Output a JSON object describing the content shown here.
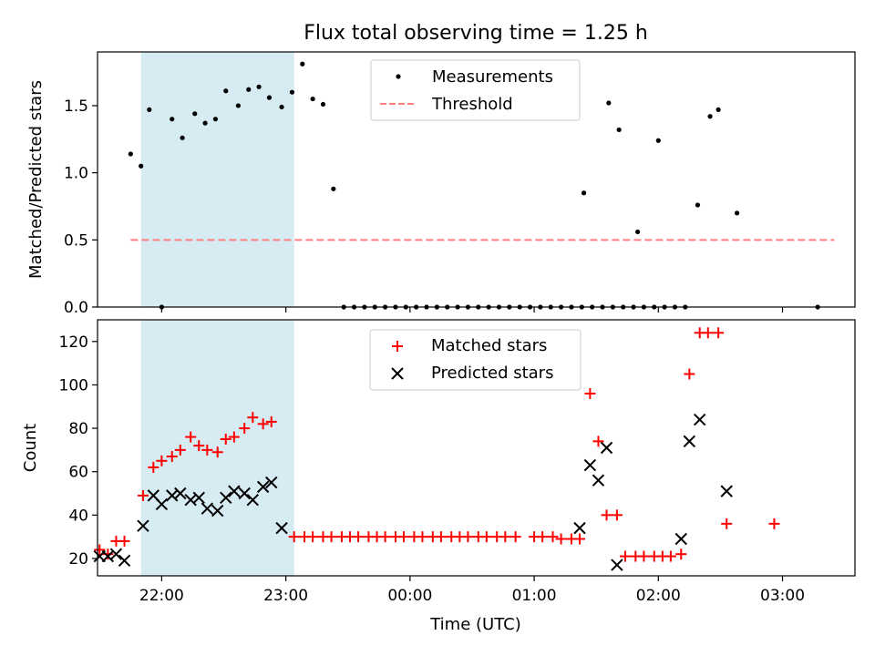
{
  "chart_data": [
    {
      "type": "scatter",
      "title": "Flux total observing time = 1.25 h",
      "xlabel": "",
      "ylabel": "Matched/Predicted stars",
      "ylim": [
        0,
        1.9
      ],
      "xlim": [
        "21:29",
        "03:35"
      ],
      "yticks": [
        "0.0",
        "0.5",
        "1.0",
        "1.5"
      ],
      "xticks": [
        "22:00",
        "23:00",
        "00:00",
        "01:00",
        "02:00",
        "03:00"
      ],
      "xtick_labels_visible": false,
      "legend_placement": "top-center",
      "highlight_span": {
        "from": "21:50",
        "to": "23:04",
        "color": "#add8e6"
      },
      "series": [
        {
          "name": "Measurements",
          "marker": "dot",
          "color": "#000000",
          "points": [
            [
              "21:45",
              1.14
            ],
            [
              "21:50",
              1.05
            ],
            [
              "21:54",
              1.47
            ],
            [
              "22:00",
              0.0
            ],
            [
              "22:05",
              1.4
            ],
            [
              "22:10",
              1.26
            ],
            [
              "22:16",
              1.44
            ],
            [
              "22:21",
              1.37
            ],
            [
              "22:26",
              1.4
            ],
            [
              "22:31",
              1.61
            ],
            [
              "22:37",
              1.5
            ],
            [
              "22:42",
              1.62
            ],
            [
              "22:47",
              1.64
            ],
            [
              "22:52",
              1.56
            ],
            [
              "22:58",
              1.49
            ],
            [
              "23:03",
              1.6
            ],
            [
              "23:08",
              1.81
            ],
            [
              "23:13",
              1.55
            ],
            [
              "23:18",
              1.51
            ],
            [
              "23:23",
              0.88
            ],
            [
              "23:28",
              0.0
            ],
            [
              "23:33",
              0.0
            ],
            [
              "23:38",
              0.0
            ],
            [
              "23:43",
              0.0
            ],
            [
              "23:48",
              0.0
            ],
            [
              "23:53",
              0.0
            ],
            [
              "23:58",
              0.0
            ],
            [
              "00:03",
              0.0
            ],
            [
              "00:08",
              0.0
            ],
            [
              "00:13",
              0.0
            ],
            [
              "00:18",
              0.0
            ],
            [
              "00:23",
              0.0
            ],
            [
              "00:28",
              0.0
            ],
            [
              "00:33",
              0.0
            ],
            [
              "00:38",
              0.0
            ],
            [
              "00:43",
              0.0
            ],
            [
              "00:48",
              0.0
            ],
            [
              "00:53",
              0.0
            ],
            [
              "00:58",
              0.0
            ],
            [
              "01:03",
              0.0
            ],
            [
              "01:08",
              0.0
            ],
            [
              "01:13",
              0.0
            ],
            [
              "01:18",
              0.0
            ],
            [
              "01:23",
              0.0
            ],
            [
              "01:28",
              0.0
            ],
            [
              "01:33",
              0.0
            ],
            [
              "01:38",
              0.0
            ],
            [
              "01:43",
              0.0
            ],
            [
              "01:48",
              0.0
            ],
            [
              "01:53",
              0.0
            ],
            [
              "01:58",
              0.0
            ],
            [
              "02:03",
              0.0
            ],
            [
              "02:08",
              0.0
            ],
            [
              "02:13",
              0.0
            ],
            [
              "01:24",
              0.85
            ],
            [
              "01:36",
              1.52
            ],
            [
              "01:41",
              1.32
            ],
            [
              "01:50",
              0.56
            ],
            [
              "02:00",
              1.24
            ],
            [
              "02:19",
              0.76
            ],
            [
              "02:25",
              1.42
            ],
            [
              "02:29",
              1.47
            ],
            [
              "02:38",
              0.7
            ],
            [
              "03:17",
              0.0
            ]
          ]
        },
        {
          "name": "Threshold",
          "marker": "dashed-line",
          "color": "#ff7f7f",
          "points": [
            [
              "21:45",
              0.5
            ],
            [
              "03:25",
              0.5
            ]
          ]
        }
      ]
    },
    {
      "type": "scatter",
      "xlabel": "Time (UTC)",
      "ylabel": "Count",
      "ylim": [
        12,
        130
      ],
      "xlim": [
        "21:29",
        "03:35"
      ],
      "yticks": [
        "20",
        "40",
        "60",
        "80",
        "100",
        "120"
      ],
      "xticks": [
        "22:00",
        "23:00",
        "00:00",
        "01:00",
        "02:00",
        "03:00"
      ],
      "legend_placement": "top-center",
      "highlight_span": {
        "from": "21:50",
        "to": "23:04",
        "color": "#add8e6"
      },
      "series": [
        {
          "name": "Matched stars",
          "marker": "plus",
          "color": "#ff0000",
          "points": [
            [
              "21:30",
              24
            ],
            [
              "21:34",
              22
            ],
            [
              "21:38",
              28
            ],
            [
              "21:42",
              28
            ],
            [
              "21:51",
              49
            ],
            [
              "21:56",
              62
            ],
            [
              "22:00",
              65
            ],
            [
              "22:05",
              67
            ],
            [
              "22:09",
              70
            ],
            [
              "22:14",
              76
            ],
            [
              "22:18",
              72
            ],
            [
              "22:22",
              70
            ],
            [
              "22:27",
              69
            ],
            [
              "22:31",
              75
            ],
            [
              "22:35",
              76
            ],
            [
              "22:40",
              80
            ],
            [
              "22:44",
              85
            ],
            [
              "22:49",
              82
            ],
            [
              "22:53",
              83
            ],
            [
              "23:04",
              30
            ],
            [
              "23:09",
              30
            ],
            [
              "23:13",
              30
            ],
            [
              "23:18",
              30
            ],
            [
              "23:22",
              30
            ],
            [
              "23:27",
              30
            ],
            [
              "23:31",
              30
            ],
            [
              "23:35",
              30
            ],
            [
              "23:40",
              30
            ],
            [
              "23:44",
              30
            ],
            [
              "23:48",
              30
            ],
            [
              "23:53",
              30
            ],
            [
              "23:57",
              30
            ],
            [
              "00:02",
              30
            ],
            [
              "00:06",
              30
            ],
            [
              "00:11",
              30
            ],
            [
              "00:15",
              30
            ],
            [
              "00:20",
              30
            ],
            [
              "00:24",
              30
            ],
            [
              "00:28",
              30
            ],
            [
              "00:33",
              30
            ],
            [
              "00:37",
              30
            ],
            [
              "00:42",
              30
            ],
            [
              "00:46",
              30
            ],
            [
              "00:51",
              30
            ],
            [
              "01:00",
              30
            ],
            [
              "01:04",
              30
            ],
            [
              "01:09",
              30
            ],
            [
              "01:13",
              29
            ],
            [
              "01:18",
              29
            ],
            [
              "01:22",
              29
            ],
            [
              "01:27",
              96
            ],
            [
              "01:31",
              74
            ],
            [
              "01:35",
              40
            ],
            [
              "01:40",
              40
            ],
            [
              "01:44",
              21
            ],
            [
              "01:49",
              21
            ],
            [
              "01:53",
              21
            ],
            [
              "01:58",
              21
            ],
            [
              "02:02",
              21
            ],
            [
              "02:06",
              21
            ],
            [
              "02:11",
              22
            ],
            [
              "02:15",
              105
            ],
            [
              "02:20",
              124
            ],
            [
              "02:24",
              124
            ],
            [
              "02:29",
              124
            ],
            [
              "02:33",
              36
            ],
            [
              "02:56",
              36
            ]
          ]
        },
        {
          "name": "Predicted stars",
          "marker": "x",
          "color": "#000000",
          "points": [
            [
              "21:30",
              21
            ],
            [
              "21:34",
              21
            ],
            [
              "21:38",
              22
            ],
            [
              "21:42",
              19
            ],
            [
              "21:51",
              35
            ],
            [
              "21:56",
              49
            ],
            [
              "22:00",
              45
            ],
            [
              "22:05",
              49
            ],
            [
              "22:09",
              50
            ],
            [
              "22:14",
              47
            ],
            [
              "22:18",
              48
            ],
            [
              "22:22",
              43
            ],
            [
              "22:27",
              42
            ],
            [
              "22:31",
              48
            ],
            [
              "22:35",
              51
            ],
            [
              "22:40",
              50
            ],
            [
              "22:44",
              47
            ],
            [
              "22:49",
              53
            ],
            [
              "22:53",
              55
            ],
            [
              "22:58",
              34
            ],
            [
              "01:22",
              34
            ],
            [
              "01:27",
              63
            ],
            [
              "01:31",
              56
            ],
            [
              "01:35",
              71
            ],
            [
              "01:40",
              17
            ],
            [
              "02:11",
              29
            ],
            [
              "02:15",
              74
            ],
            [
              "02:20",
              84
            ],
            [
              "02:33",
              51
            ]
          ]
        }
      ]
    }
  ]
}
